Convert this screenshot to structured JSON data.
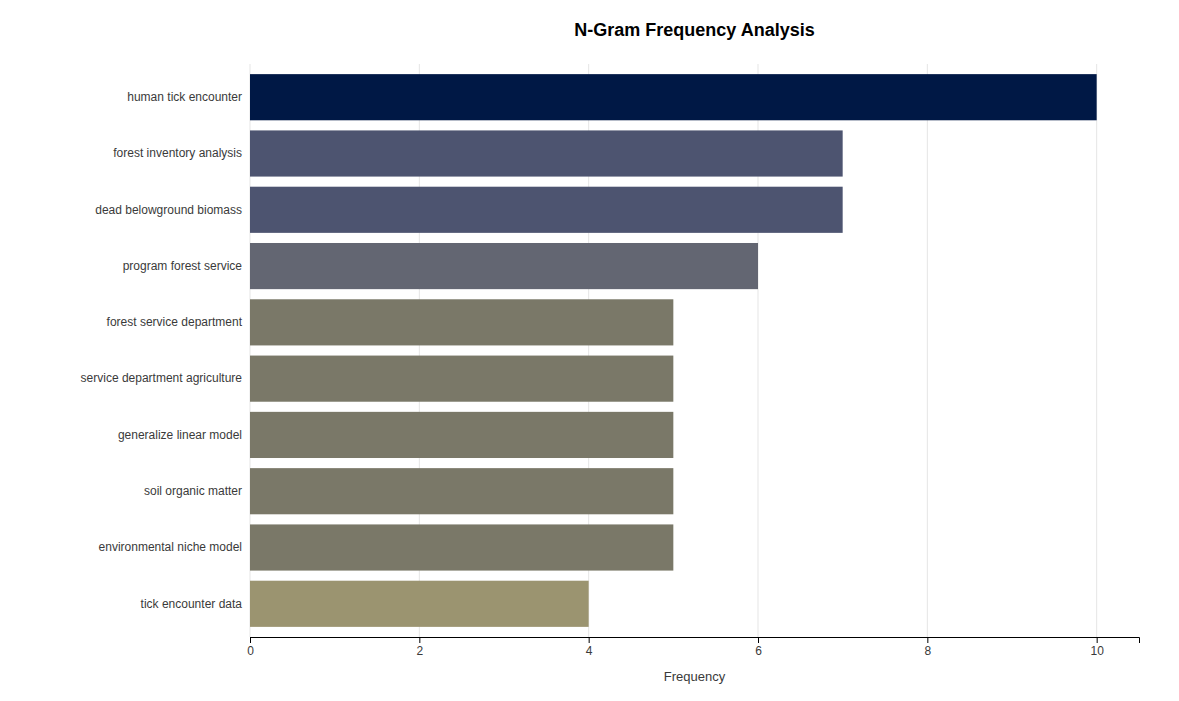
{
  "chart_data": {
    "type": "bar",
    "orientation": "horizontal",
    "title": "N-Gram Frequency Analysis",
    "categories": [
      "tick encounter data",
      "environmental niche model",
      "soil organic matter",
      "generalize linear model",
      "service department agriculture",
      "forest service department",
      "program forest service",
      "dead belowground biomass",
      "forest inventory analysis",
      "human tick encounter"
    ],
    "values": [
      4,
      5,
      5,
      5,
      5,
      5,
      6,
      7,
      7,
      10
    ],
    "colors": [
      "#9b9470",
      "#7a7868",
      "#7a7868",
      "#7a7868",
      "#7a7868",
      "#7a7868",
      "#636672",
      "#4d5470",
      "#4d5470",
      "#001845"
    ],
    "xlabel": "Frequency",
    "xlim": [
      0,
      10.5
    ],
    "xticks": [
      0,
      2,
      4,
      6,
      8,
      10
    ],
    "grid": true
  }
}
